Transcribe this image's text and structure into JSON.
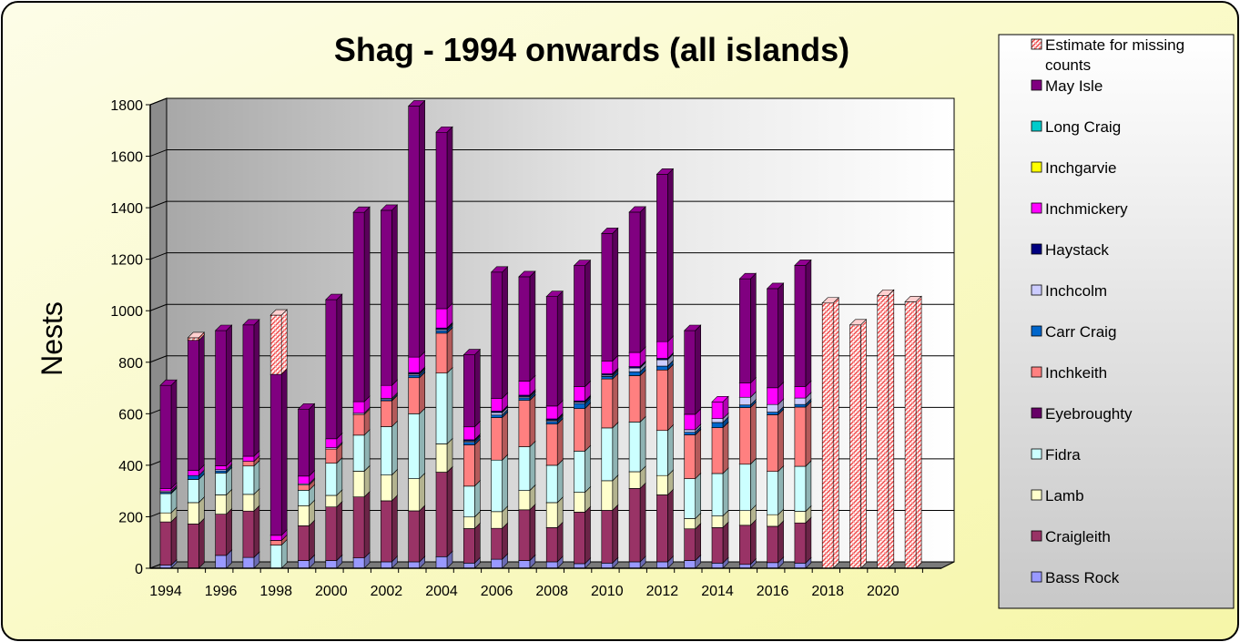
{
  "chart_data": {
    "type": "bar",
    "stacked": true,
    "title": "Shag - 1994 onwards (all islands)",
    "ylabel": "Nests",
    "xlabel": "",
    "ylim": [
      0,
      1800
    ],
    "yticks": [
      "0",
      "200",
      "400",
      "600",
      "800",
      "1000",
      "1200",
      "1400",
      "1600",
      "1800"
    ],
    "x_tick_labels": [
      "1994",
      "1996",
      "1998",
      "2000",
      "2002",
      "2004",
      "2006",
      "2008",
      "2010",
      "2012",
      "2014",
      "2016",
      "2018",
      "2020"
    ],
    "categories": [
      "1994",
      "1995",
      "1996",
      "1997",
      "1998",
      "1999",
      "2000",
      "2001",
      "2002",
      "2003",
      "2004",
      "2005",
      "2006",
      "2007",
      "2008",
      "2009",
      "2010",
      "2011",
      "2012",
      "2013",
      "2014",
      "2015",
      "2016",
      "2017",
      "2018",
      "2019",
      "2020",
      "2021"
    ],
    "legend_position": "right",
    "grid": true,
    "series": [
      {
        "name": "Bass Rock",
        "color": "#9999ff",
        "values": [
          12,
          0,
          50,
          42,
          0,
          30,
          30,
          40,
          25,
          25,
          45,
          20,
          35,
          30,
          25,
          18,
          20,
          25,
          25,
          30,
          20,
          15,
          22,
          20,
          0,
          0,
          0,
          0
        ]
      },
      {
        "name": "Craigleith",
        "color": "#993366",
        "values": [
          168,
          172,
          160,
          180,
          0,
          135,
          208,
          237,
          237,
          198,
          328,
          134,
          120,
          197,
          133,
          200,
          205,
          285,
          260,
          123,
          138,
          152,
          141,
          156,
          0,
          0,
          0,
          0
        ]
      },
      {
        "name": "Lamb",
        "color": "#ffffcc",
        "values": [
          35,
          83,
          75,
          65,
          0,
          78,
          45,
          100,
          100,
          125,
          110,
          45,
          65,
          75,
          97,
          77,
          115,
          65,
          75,
          40,
          45,
          57,
          45,
          45,
          0,
          0,
          0,
          0
        ]
      },
      {
        "name": "Fidra",
        "color": "#ccffff",
        "values": [
          75,
          90,
          85,
          110,
          90,
          60,
          125,
          140,
          188,
          252,
          275,
          120,
          200,
          170,
          145,
          160,
          205,
          193,
          175,
          155,
          165,
          180,
          168,
          175,
          0,
          0,
          0,
          0
        ]
      },
      {
        "name": "Eyebroughty",
        "color": "#660066",
        "values": [
          0,
          0,
          0,
          0,
          0,
          0,
          0,
          0,
          0,
          0,
          0,
          0,
          0,
          0,
          0,
          0,
          0,
          0,
          0,
          0,
          0,
          0,
          0,
          0,
          0,
          0,
          0,
          0
        ]
      },
      {
        "name": "Inchkeith",
        "color": "#ff8080",
        "values": [
          0,
          0,
          0,
          18,
          18,
          20,
          55,
          80,
          100,
          140,
          155,
          160,
          165,
          180,
          160,
          165,
          190,
          180,
          235,
          170,
          178,
          220,
          220,
          230,
          0,
          0,
          0,
          0
        ]
      },
      {
        "name": "Carr Craig",
        "color": "#0066cc",
        "values": [
          5,
          15,
          8,
          0,
          0,
          0,
          0,
          0,
          5,
          10,
          10,
          10,
          10,
          10,
          10,
          20,
          10,
          15,
          15,
          10,
          20,
          10,
          10,
          10,
          0,
          0,
          0,
          0
        ]
      },
      {
        "name": "Inchcolm",
        "color": "#ccccff",
        "values": [
          5,
          0,
          5,
          0,
          0,
          5,
          5,
          5,
          5,
          5,
          5,
          5,
          10,
          5,
          5,
          5,
          5,
          15,
          25,
          10,
          15,
          30,
          30,
          25,
          0,
          0,
          0,
          0
        ]
      },
      {
        "name": "Haystack",
        "color": "#000080",
        "values": [
          0,
          0,
          0,
          0,
          0,
          0,
          0,
          0,
          0,
          5,
          5,
          5,
          5,
          5,
          5,
          5,
          5,
          5,
          5,
          0,
          0,
          0,
          0,
          0,
          0,
          0,
          0,
          0
        ]
      },
      {
        "name": "Inchmickery",
        "color": "#ff00ff",
        "values": [
          10,
          20,
          15,
          20,
          20,
          30,
          35,
          45,
          50,
          60,
          75,
          50,
          50,
          55,
          50,
          55,
          50,
          55,
          65,
          60,
          65,
          55,
          65,
          45,
          0,
          0,
          0,
          0
        ]
      },
      {
        "name": "Inchgarvie",
        "color": "#ffff00",
        "values": [
          0,
          0,
          0,
          0,
          0,
          0,
          0,
          0,
          0,
          0,
          0,
          0,
          0,
          0,
          0,
          0,
          0,
          0,
          0,
          0,
          0,
          0,
          0,
          0,
          0,
          0,
          0,
          0
        ]
      },
      {
        "name": "Long Craig",
        "color": "#00cccc",
        "values": [
          0,
          0,
          0,
          0,
          0,
          0,
          0,
          0,
          0,
          0,
          0,
          0,
          0,
          0,
          0,
          0,
          0,
          0,
          0,
          0,
          0,
          0,
          0,
          0,
          0,
          0,
          0,
          0
        ]
      },
      {
        "name": "May Isle",
        "color": "#800080",
        "values": [
          400,
          505,
          525,
          510,
          625,
          260,
          540,
          735,
          680,
          975,
          685,
          280,
          490,
          405,
          425,
          470,
          495,
          545,
          650,
          325,
          0,
          405,
          385,
          470,
          0,
          0,
          0,
          0
        ]
      },
      {
        "name": "Estimate for missing counts",
        "color": "#ff9999",
        "values": [
          0,
          10,
          0,
          0,
          230,
          0,
          0,
          0,
          0,
          0,
          0,
          0,
          0,
          0,
          0,
          0,
          0,
          0,
          0,
          0,
          0,
          0,
          0,
          0,
          1030,
          945,
          1060,
          1035
        ]
      }
    ]
  }
}
